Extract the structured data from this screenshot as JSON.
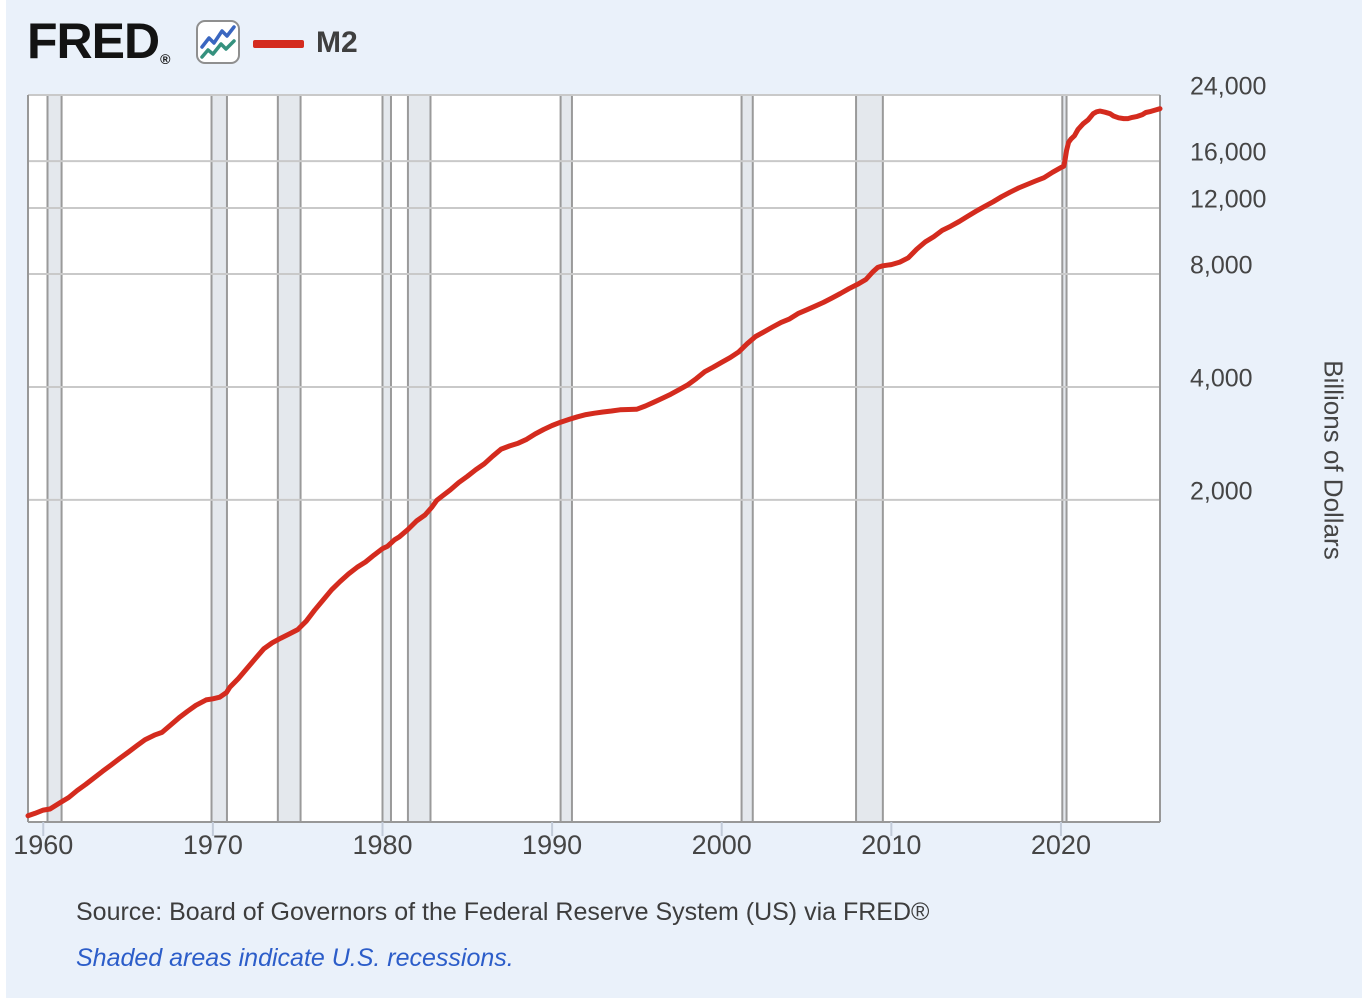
{
  "header": {
    "logo_text": "FRED",
    "logo_registered": "®",
    "legend_label": "M2"
  },
  "chart_data": {
    "type": "line",
    "title": "",
    "xlabel": "",
    "ylabel": "Billions of Dollars",
    "y_scale": "log",
    "grid": "on",
    "legend_position": "top-left",
    "x_range": [
      1959.1,
      2025.84
    ],
    "y_top": 24000,
    "y_bottom": 277,
    "x_ticks": [
      {
        "year": 1960,
        "label": "1960"
      },
      {
        "year": 1970,
        "label": "1970"
      },
      {
        "year": 1980,
        "label": "1980"
      },
      {
        "year": 1990,
        "label": "1990"
      },
      {
        "year": 2000,
        "label": "2000"
      },
      {
        "year": 2010,
        "label": "2010"
      },
      {
        "year": 2020,
        "label": "2020"
      }
    ],
    "y_ticks": [
      {
        "value": 24000,
        "label": "24,000"
      },
      {
        "value": 16000,
        "label": "16,000"
      },
      {
        "value": 12000,
        "label": "12,000"
      },
      {
        "value": 8000,
        "label": "8,000"
      },
      {
        "value": 4000,
        "label": "4,000"
      },
      {
        "value": 2000,
        "label": "2,000"
      }
    ],
    "recessions": [
      [
        1960.25,
        1961.08
      ],
      [
        1969.92,
        1970.83
      ],
      [
        1973.83,
        1975.17
      ],
      [
        1980.0,
        1980.5
      ],
      [
        1981.5,
        1982.83
      ],
      [
        1990.5,
        1991.17
      ],
      [
        2001.17,
        2001.83
      ],
      [
        2007.92,
        2009.5
      ],
      [
        2020.08,
        2020.33
      ]
    ],
    "series": [
      {
        "name": "M2",
        "color": "#d42b1e",
        "points": [
          [
            1959.1,
            288
          ],
          [
            1959.5,
            292
          ],
          [
            1960.0,
            298
          ],
          [
            1960.4,
            300
          ],
          [
            1961.0,
            312
          ],
          [
            1961.5,
            322
          ],
          [
            1962.0,
            336
          ],
          [
            1962.5,
            349
          ],
          [
            1963.0,
            363
          ],
          [
            1963.5,
            378
          ],
          [
            1964.0,
            393
          ],
          [
            1964.5,
            409
          ],
          [
            1965.0,
            425
          ],
          [
            1965.5,
            442
          ],
          [
            1966.0,
            459
          ],
          [
            1966.6,
            473
          ],
          [
            1967.0,
            480
          ],
          [
            1967.5,
            502
          ],
          [
            1968.0,
            525
          ],
          [
            1968.5,
            546
          ],
          [
            1969.0,
            567
          ],
          [
            1969.6,
            586
          ],
          [
            1970.0,
            590
          ],
          [
            1970.4,
            596
          ],
          [
            1970.8,
            613
          ],
          [
            1971.0,
            633
          ],
          [
            1971.5,
            668
          ],
          [
            1972.0,
            710
          ],
          [
            1972.5,
            755
          ],
          [
            1973.0,
            802
          ],
          [
            1973.5,
            832
          ],
          [
            1974.0,
            856
          ],
          [
            1974.5,
            878
          ],
          [
            1975.0,
            902
          ],
          [
            1975.5,
            950
          ],
          [
            1976.0,
            1016
          ],
          [
            1976.5,
            1082
          ],
          [
            1977.0,
            1152
          ],
          [
            1977.5,
            1212
          ],
          [
            1978.0,
            1270
          ],
          [
            1978.5,
            1322
          ],
          [
            1979.0,
            1366
          ],
          [
            1979.5,
            1425
          ],
          [
            1980.0,
            1483
          ],
          [
            1980.3,
            1505
          ],
          [
            1980.7,
            1565
          ],
          [
            1981.0,
            1596
          ],
          [
            1981.5,
            1668
          ],
          [
            1982.0,
            1756
          ],
          [
            1982.5,
            1822
          ],
          [
            1982.9,
            1910
          ],
          [
            1983.2,
            1995
          ],
          [
            1983.5,
            2045
          ],
          [
            1984.0,
            2126
          ],
          [
            1984.5,
            2225
          ],
          [
            1985.0,
            2310
          ],
          [
            1985.5,
            2407
          ],
          [
            1986.0,
            2496
          ],
          [
            1986.5,
            2615
          ],
          [
            1987.0,
            2732
          ],
          [
            1987.5,
            2785
          ],
          [
            1988.0,
            2833
          ],
          [
            1988.5,
            2900
          ],
          [
            1989.0,
            2996
          ],
          [
            1989.5,
            3080
          ],
          [
            1990.0,
            3158
          ],
          [
            1990.5,
            3221
          ],
          [
            1991.0,
            3278
          ],
          [
            1991.5,
            3330
          ],
          [
            1992.0,
            3376
          ],
          [
            1992.5,
            3405
          ],
          [
            1993.0,
            3430
          ],
          [
            1993.5,
            3450
          ],
          [
            1994.0,
            3476
          ],
          [
            1994.5,
            3482
          ],
          [
            1995.0,
            3489
          ],
          [
            1995.5,
            3558
          ],
          [
            1996.0,
            3642
          ],
          [
            1996.5,
            3732
          ],
          [
            1997.0,
            3826
          ],
          [
            1997.5,
            3935
          ],
          [
            1998.0,
            4052
          ],
          [
            1998.5,
            4210
          ],
          [
            1999.0,
            4393
          ],
          [
            1999.5,
            4515
          ],
          [
            2000.0,
            4654
          ],
          [
            2000.5,
            4790
          ],
          [
            2001.0,
            4960
          ],
          [
            2001.5,
            5215
          ],
          [
            2002.0,
            5453
          ],
          [
            2002.5,
            5610
          ],
          [
            2003.0,
            5779
          ],
          [
            2003.5,
            5945
          ],
          [
            2004.0,
            6073
          ],
          [
            2004.5,
            6275
          ],
          [
            2005.0,
            6420
          ],
          [
            2005.5,
            6565
          ],
          [
            2006.0,
            6720
          ],
          [
            2006.5,
            6905
          ],
          [
            2007.0,
            7096
          ],
          [
            2007.5,
            7310
          ],
          [
            2008.0,
            7507
          ],
          [
            2008.5,
            7735
          ],
          [
            2008.9,
            8100
          ],
          [
            2009.2,
            8330
          ],
          [
            2009.5,
            8415
          ],
          [
            2010.0,
            8478
          ],
          [
            2010.5,
            8605
          ],
          [
            2011.0,
            8835
          ],
          [
            2011.5,
            9320
          ],
          [
            2012.0,
            9745
          ],
          [
            2012.5,
            10060
          ],
          [
            2013.0,
            10452
          ],
          [
            2013.5,
            10730
          ],
          [
            2014.0,
            11043
          ],
          [
            2014.5,
            11410
          ],
          [
            2015.0,
            11762
          ],
          [
            2015.5,
            12115
          ],
          [
            2016.0,
            12460
          ],
          [
            2016.5,
            12855
          ],
          [
            2017.0,
            13219
          ],
          [
            2017.5,
            13560
          ],
          [
            2018.0,
            13858
          ],
          [
            2018.5,
            14160
          ],
          [
            2019.0,
            14451
          ],
          [
            2019.5,
            14935
          ],
          [
            2020.05,
            15420
          ],
          [
            2020.17,
            15500
          ],
          [
            2020.25,
            16200
          ],
          [
            2020.33,
            17050
          ],
          [
            2020.45,
            17950
          ],
          [
            2020.6,
            18330
          ],
          [
            2020.8,
            18700
          ],
          [
            2021.0,
            19409
          ],
          [
            2021.3,
            20100
          ],
          [
            2021.6,
            20600
          ],
          [
            2021.9,
            21400
          ],
          [
            2022.1,
            21650
          ],
          [
            2022.3,
            21740
          ],
          [
            2022.6,
            21600
          ],
          [
            2022.9,
            21400
          ],
          [
            2023.1,
            21100
          ],
          [
            2023.4,
            20860
          ],
          [
            2023.7,
            20770
          ],
          [
            2023.95,
            20760
          ],
          [
            2024.2,
            20920
          ],
          [
            2024.5,
            21050
          ],
          [
            2024.8,
            21280
          ],
          [
            2025.0,
            21560
          ],
          [
            2025.3,
            21700
          ],
          [
            2025.6,
            21900
          ],
          [
            2025.84,
            22060
          ]
        ]
      }
    ]
  },
  "footer": {
    "source_text": "Source: Board of Governors of the Federal Reserve System (US) via FRED®",
    "recession_note": "Shaded areas indicate U.S. recessions."
  },
  "colors": {
    "background": "#eaf1fa",
    "plot_background": "#ffffff",
    "gridline": "#c9c9c9",
    "plot_border": "#989898",
    "recession_fill": "#e4e8ed",
    "recession_edge": "#9a9a9a",
    "line": "#d42b1e",
    "axis_tick": "#c2cbd9",
    "icon_blue": "#3a66c0",
    "icon_teal": "#35917e"
  }
}
